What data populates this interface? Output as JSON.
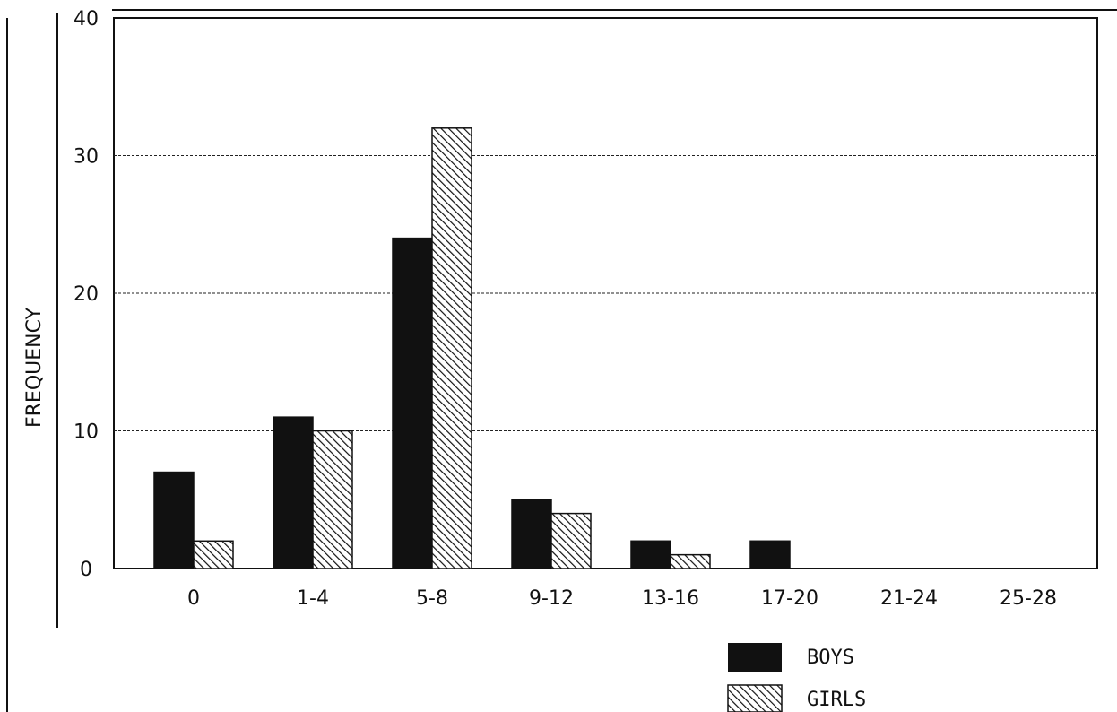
{
  "chart_data": {
    "type": "bar",
    "title": "",
    "xlabel": "",
    "ylabel": "FREQUENCY",
    "ylim": [
      0,
      40
    ],
    "yticks": [
      "0",
      "10",
      "20",
      "30",
      "40"
    ],
    "grid": true,
    "legend_position": "bottom-right",
    "categories": [
      "0",
      "1-4",
      "5-8",
      "9-12",
      "13-16",
      "17-20",
      "21-24",
      "25-28"
    ],
    "series": [
      {
        "name": "BOYS",
        "values": [
          7,
          11,
          24,
          5,
          2,
          2,
          0,
          0
        ],
        "fill": "solid",
        "color": "#111111"
      },
      {
        "name": "GIRLS",
        "values": [
          2,
          10,
          32,
          4,
          1,
          0,
          0,
          0
        ],
        "fill": "hatched",
        "color": "#111111"
      }
    ]
  }
}
